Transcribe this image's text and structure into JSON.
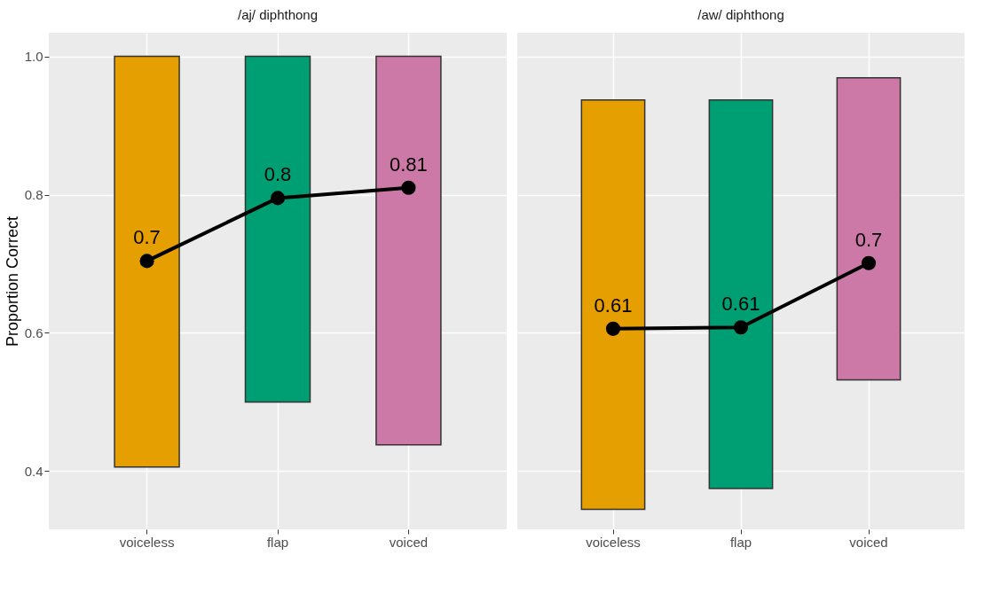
{
  "chart_data": [
    {
      "type": "bar",
      "title": "/aj/ diphthong",
      "ylabel": "Proportion Correct",
      "categories": [
        "voiceless",
        "flap",
        "voiced"
      ],
      "ylim": [
        0.316,
        1.034
      ],
      "yticks": [
        {
          "value": 0.4,
          "label": "0.4"
        },
        {
          "value": 0.6,
          "label": "0.6"
        },
        {
          "value": 0.8,
          "label": "0.8"
        },
        {
          "value": 1,
          "label": "1.0"
        }
      ],
      "grid": true,
      "series": [
        {
          "type": "bar",
          "colors": [
            "#e69f00",
            "#009e73",
            "#cc79a7"
          ],
          "base": [
            0.406,
            0.5,
            0.438
          ],
          "values": [
            0.594,
            0.5,
            0.562
          ]
        },
        {
          "type": "line",
          "color": "#000000",
          "marker": "circle",
          "values": [
            0.704,
            0.795,
            0.81
          ],
          "value_labels": [
            "0.7",
            "0.8",
            "0.81"
          ]
        }
      ]
    },
    {
      "type": "bar",
      "title": "/aw/ diphthong",
      "categories": [
        "voiceless",
        "flap",
        "voiced"
      ],
      "ylim": [
        0.316,
        1.034
      ],
      "yticks": [
        0.4,
        0.6,
        0.8,
        1
      ],
      "grid": true,
      "tick_labels": "x",
      "series": [
        {
          "type": "bar",
          "colors": [
            "#e69f00",
            "#009e73",
            "#cc79a7"
          ],
          "base": [
            0.345,
            0.375,
            0.532
          ],
          "values": [
            0.592,
            0.562,
            0.437
          ]
        },
        {
          "type": "line",
          "color": "#000000",
          "marker": "circle",
          "values": [
            0.606,
            0.608,
            0.701
          ],
          "value_labels": [
            "0.61",
            "0.61",
            "0.7"
          ]
        }
      ]
    }
  ]
}
